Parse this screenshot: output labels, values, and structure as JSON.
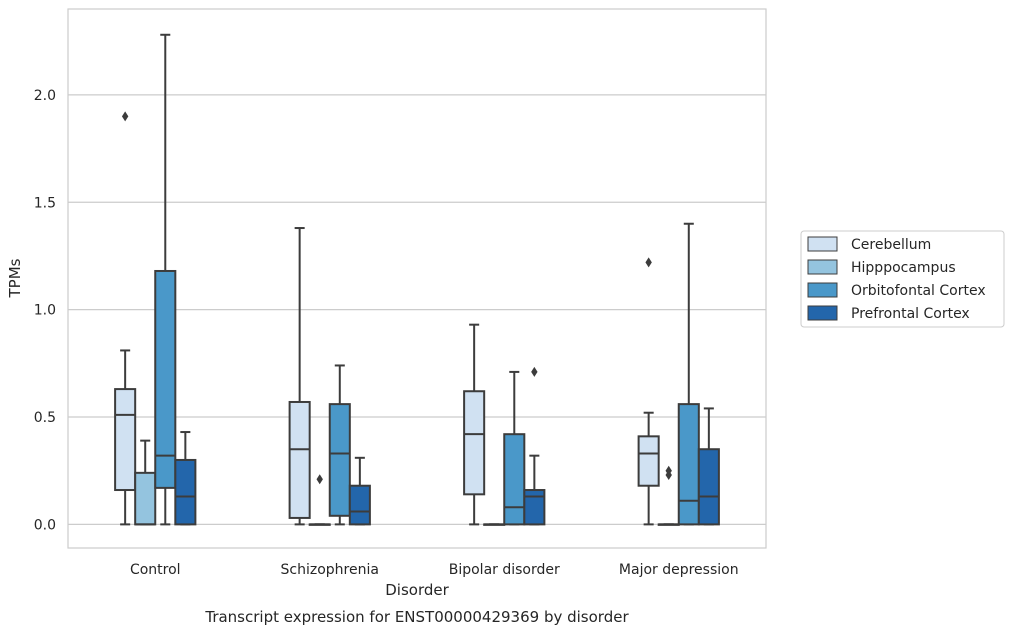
{
  "chart_data": {
    "type": "box",
    "title": "Transcript expression for ENST00000429369 by disorder",
    "xlabel": "Disorder",
    "ylabel": "TPMs",
    "ylim": [
      -0.11,
      2.4
    ],
    "yticks": [
      0.0,
      0.5,
      1.0,
      1.5,
      2.0
    ],
    "ytick_labels": [
      "0.0",
      "0.5",
      "1.0",
      "1.5",
      "2.0"
    ],
    "grid": "horizontal",
    "legend_position": "right",
    "categories": [
      "Control",
      "Schizophrenia",
      "Bipolar disorder",
      "Major depression"
    ],
    "series": [
      {
        "name": "Cerebellum",
        "color": "#d0e1f2",
        "boxes": [
          {
            "whisker_low": 0.0,
            "q1": 0.16,
            "median": 0.51,
            "q3": 0.63,
            "whisker_high": 0.81,
            "outliers": [
              1.9
            ]
          },
          {
            "whisker_low": 0.0,
            "q1": 0.03,
            "median": 0.35,
            "q3": 0.57,
            "whisker_high": 1.38,
            "outliers": []
          },
          {
            "whisker_low": 0.0,
            "q1": 0.14,
            "median": 0.42,
            "q3": 0.62,
            "whisker_high": 0.93,
            "outliers": []
          },
          {
            "whisker_low": 0.0,
            "q1": 0.18,
            "median": 0.33,
            "q3": 0.41,
            "whisker_high": 0.52,
            "outliers": [
              1.22
            ]
          }
        ]
      },
      {
        "name": "Hipppocampus",
        "color": "#94c4df",
        "boxes": [
          {
            "whisker_low": 0.0,
            "q1": 0.0,
            "median": 0.0,
            "q3": 0.24,
            "whisker_high": 0.39,
            "outliers": []
          },
          {
            "whisker_low": 0.0,
            "q1": 0.0,
            "median": 0.0,
            "q3": 0.0,
            "whisker_high": 0.0,
            "outliers": [
              0.21
            ]
          },
          {
            "whisker_low": 0.0,
            "q1": 0.0,
            "median": 0.0,
            "q3": 0.0,
            "whisker_high": 0.0,
            "outliers": []
          },
          {
            "whisker_low": 0.0,
            "q1": 0.0,
            "median": 0.0,
            "q3": 0.0,
            "whisker_high": 0.0,
            "outliers": [
              0.23,
              0.25
            ]
          }
        ]
      },
      {
        "name": "Orbitofontal Cortex",
        "color": "#4a98c9",
        "boxes": [
          {
            "whisker_low": 0.0,
            "q1": 0.17,
            "median": 0.32,
            "q3": 1.18,
            "whisker_high": 2.28,
            "outliers": []
          },
          {
            "whisker_low": 0.0,
            "q1": 0.04,
            "median": 0.33,
            "q3": 0.56,
            "whisker_high": 0.74,
            "outliers": []
          },
          {
            "whisker_low": 0.0,
            "q1": 0.0,
            "median": 0.08,
            "q3": 0.42,
            "whisker_high": 0.71,
            "outliers": []
          },
          {
            "whisker_low": 0.0,
            "q1": 0.0,
            "median": 0.11,
            "q3": 0.56,
            "whisker_high": 1.4,
            "outliers": []
          }
        ]
      },
      {
        "name": "Prefrontal Cortex",
        "color": "#2366ab",
        "boxes": [
          {
            "whisker_low": 0.0,
            "q1": 0.0,
            "median": 0.13,
            "q3": 0.3,
            "whisker_high": 0.43,
            "outliers": []
          },
          {
            "whisker_low": 0.0,
            "q1": 0.0,
            "median": 0.06,
            "q3": 0.18,
            "whisker_high": 0.31,
            "outliers": []
          },
          {
            "whisker_low": 0.0,
            "q1": 0.0,
            "median": 0.13,
            "q3": 0.16,
            "whisker_high": 0.32,
            "outliers": [
              0.71
            ]
          },
          {
            "whisker_low": 0.0,
            "q1": 0.0,
            "median": 0.13,
            "q3": 0.35,
            "whisker_high": 0.54,
            "outliers": []
          }
        ]
      }
    ]
  }
}
